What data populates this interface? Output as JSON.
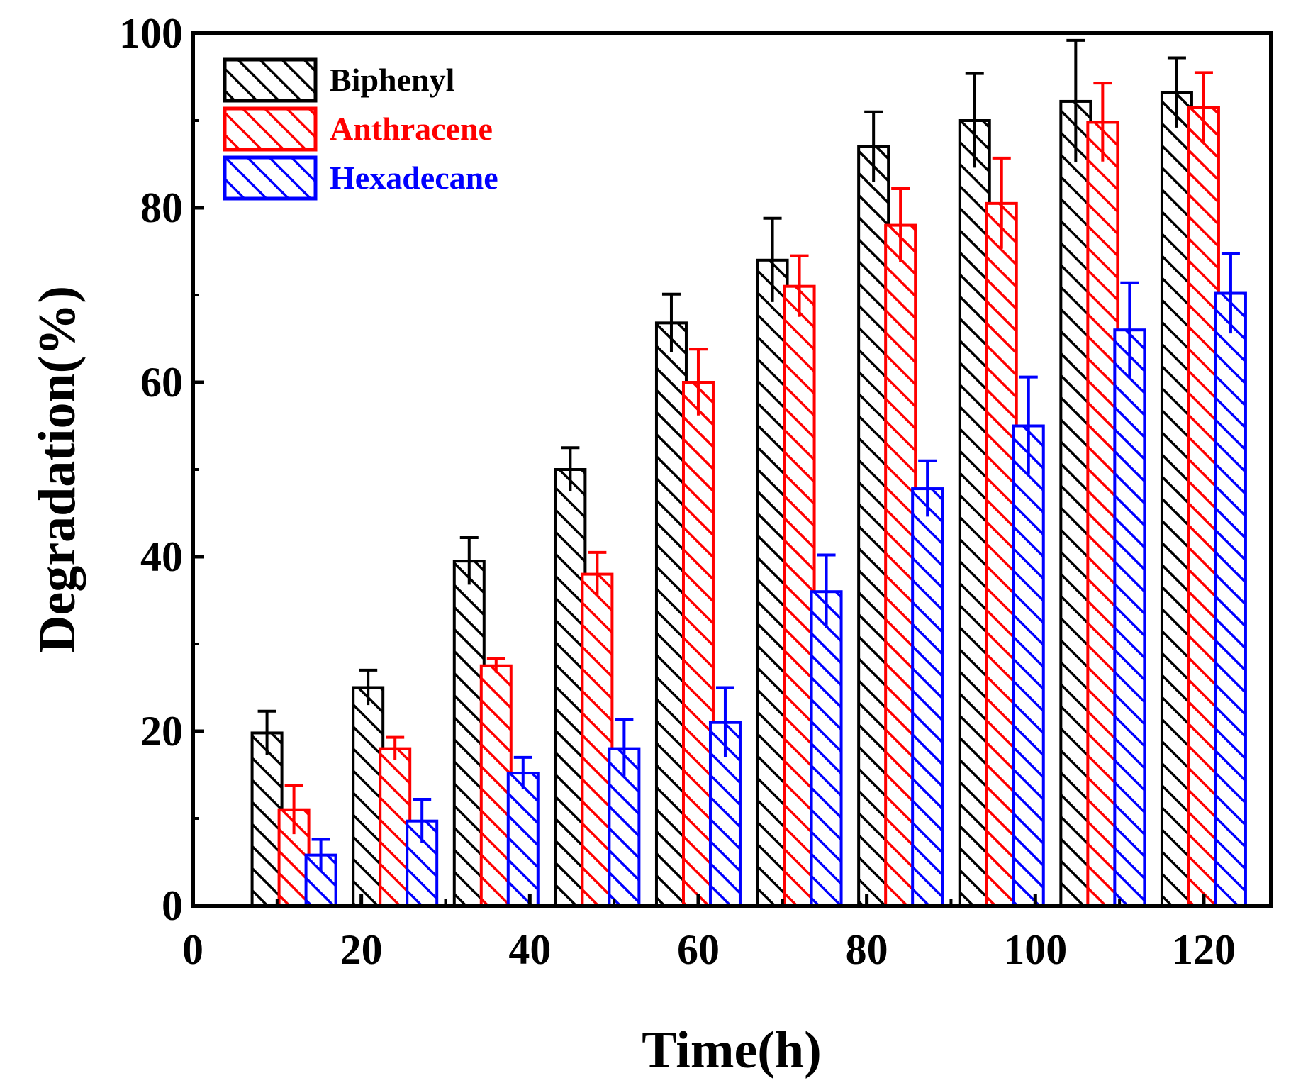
{
  "chart_data": {
    "type": "bar",
    "title": "",
    "xlabel": "Time(h)",
    "ylabel": "Degradation(%)",
    "xlim": [
      0,
      128
    ],
    "ylim": [
      0,
      100
    ],
    "xticks": [
      0,
      20,
      40,
      60,
      80,
      100,
      120
    ],
    "yticks": [
      0,
      20,
      40,
      60,
      80,
      100
    ],
    "x": [
      12,
      24,
      36,
      48,
      60,
      72,
      84,
      96,
      108,
      120
    ],
    "legend_position": "top-left",
    "series": [
      {
        "name": "Biphenyl",
        "color": "#000000",
        "hatch": "diagonal",
        "values": [
          19.8,
          25.0,
          39.5,
          50.0,
          66.8,
          74.0,
          87.0,
          90.0,
          92.2,
          93.2
        ],
        "errors": [
          2.5,
          2.0,
          2.7,
          2.5,
          3.3,
          4.8,
          4.0,
          5.4,
          7.0,
          4.0
        ]
      },
      {
        "name": "Anthracene",
        "color": "#ff0000",
        "hatch": "diagonal",
        "values": [
          11.0,
          18.0,
          27.5,
          38.0,
          60.0,
          71.0,
          78.0,
          80.5,
          89.8,
          91.5
        ],
        "errors": [
          2.8,
          1.3,
          0.8,
          2.5,
          3.8,
          3.5,
          4.2,
          5.2,
          4.5,
          4.0
        ]
      },
      {
        "name": "Hexadecane",
        "color": "#0000ff",
        "hatch": "diagonal",
        "values": [
          5.8,
          9.7,
          15.2,
          18.0,
          21.0,
          36.0,
          47.8,
          55.0,
          66.0,
          70.2
        ],
        "errors": [
          1.8,
          2.5,
          1.8,
          3.3,
          4.0,
          4.2,
          3.2,
          5.6,
          5.4,
          4.6
        ]
      }
    ]
  }
}
